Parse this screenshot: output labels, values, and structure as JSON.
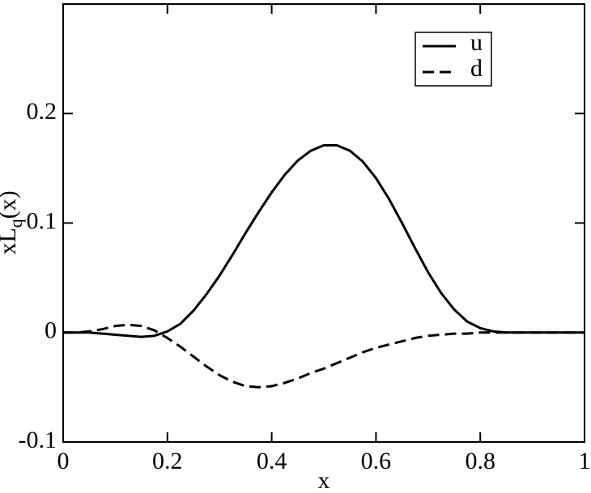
{
  "chart_data": {
    "type": "line",
    "xlabel": "x",
    "ylabel": {
      "main": "xL",
      "sub": "q",
      "tail": "(x)"
    },
    "x": [
      0,
      0.025,
      0.05,
      0.075,
      0.1,
      0.125,
      0.15,
      0.175,
      0.2,
      0.225,
      0.25,
      0.275,
      0.3,
      0.325,
      0.35,
      0.375,
      0.4,
      0.425,
      0.45,
      0.475,
      0.5,
      0.525,
      0.55,
      0.575,
      0.6,
      0.625,
      0.65,
      0.675,
      0.7,
      0.725,
      0.75,
      0.775,
      0.8,
      0.825,
      0.85,
      0.875,
      0.9,
      0.925,
      0.95,
      0.975,
      1
    ],
    "series": [
      {
        "name": "u",
        "color": "#000000",
        "dash": "solid",
        "values": [
          0,
          0,
          0,
          -0.001,
          -0.002,
          -0.003,
          -0.004,
          -0.003,
          0.001,
          0.008,
          0.02,
          0.035,
          0.052,
          0.071,
          0.091,
          0.11,
          0.128,
          0.144,
          0.157,
          0.166,
          0.171,
          0.171,
          0.166,
          0.156,
          0.141,
          0.122,
          0.1,
          0.077,
          0.055,
          0.036,
          0.021,
          0.01,
          0.004,
          0.001,
          0,
          0,
          0,
          0,
          0,
          0,
          0
        ]
      },
      {
        "name": "d",
        "color": "#000000",
        "dash": "dashed",
        "values": [
          0,
          0,
          0.001,
          0.003,
          0.006,
          0.007,
          0.006,
          0.002,
          -0.005,
          -0.013,
          -0.022,
          -0.031,
          -0.039,
          -0.045,
          -0.049,
          -0.05,
          -0.049,
          -0.046,
          -0.042,
          -0.037,
          -0.033,
          -0.028,
          -0.023,
          -0.018,
          -0.014,
          -0.011,
          -0.008,
          -0.005,
          -0.003,
          -0.002,
          -0.001,
          -0.001,
          0,
          0,
          0,
          0,
          0,
          0,
          0,
          0,
          0
        ]
      }
    ],
    "xlim": [
      0,
      1
    ],
    "xticks": [
      0,
      0.2,
      0.4,
      0.6,
      0.8,
      1
    ],
    "ylim": [
      -0.1,
      0.3
    ],
    "yticks": [
      -0.1,
      0,
      0.1,
      0.2
    ],
    "grid": false,
    "legend": "upper right"
  }
}
